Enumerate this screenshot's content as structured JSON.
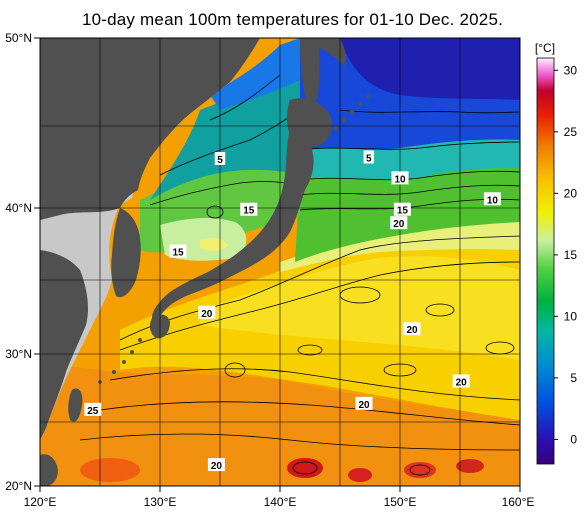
{
  "title": "10-day mean 100m temperatures for 01-10 Dec. 2025.",
  "axes": {
    "lat_ticks": [
      "20°N",
      "30°N",
      "40°N",
      "50°N"
    ],
    "lon_ticks": [
      "120°E",
      "130°E",
      "140°E",
      "150°E",
      "160°E"
    ],
    "lat_range": [
      20,
      50
    ],
    "lon_range": [
      120,
      160
    ]
  },
  "colorbar": {
    "unit": "[°C]",
    "ticks": [
      "30",
      "25",
      "20",
      "15",
      "10",
      "5",
      "0"
    ],
    "range": [
      -2,
      31
    ]
  },
  "contour_labels": [
    {
      "text": "5",
      "lon": 135.0,
      "lat": 41.9
    },
    {
      "text": "5",
      "lon": 147.4,
      "lat": 42.0
    },
    {
      "text": "10",
      "lon": 150.0,
      "lat": 40.6
    },
    {
      "text": "10",
      "lon": 157.7,
      "lat": 39.2
    },
    {
      "text": "15",
      "lon": 137.4,
      "lat": 38.5
    },
    {
      "text": "15",
      "lon": 131.5,
      "lat": 35.7
    },
    {
      "text": "15",
      "lon": 150.2,
      "lat": 38.5
    },
    {
      "text": "20",
      "lon": 149.9,
      "lat": 37.6
    },
    {
      "text": "20",
      "lon": 133.9,
      "lat": 31.6
    },
    {
      "text": "20",
      "lon": 151.0,
      "lat": 30.5
    },
    {
      "text": "20",
      "lon": 155.1,
      "lat": 27.0
    },
    {
      "text": "20",
      "lon": 147.0,
      "lat": 25.5
    },
    {
      "text": "25",
      "lon": 124.4,
      "lat": 25.1
    },
    {
      "text": "20",
      "lon": 134.7,
      "lat": 21.4
    }
  ],
  "colors": {
    "land_gray": "#c8c8c8",
    "land_dark": "#505050",
    "grid": "#000000"
  }
}
